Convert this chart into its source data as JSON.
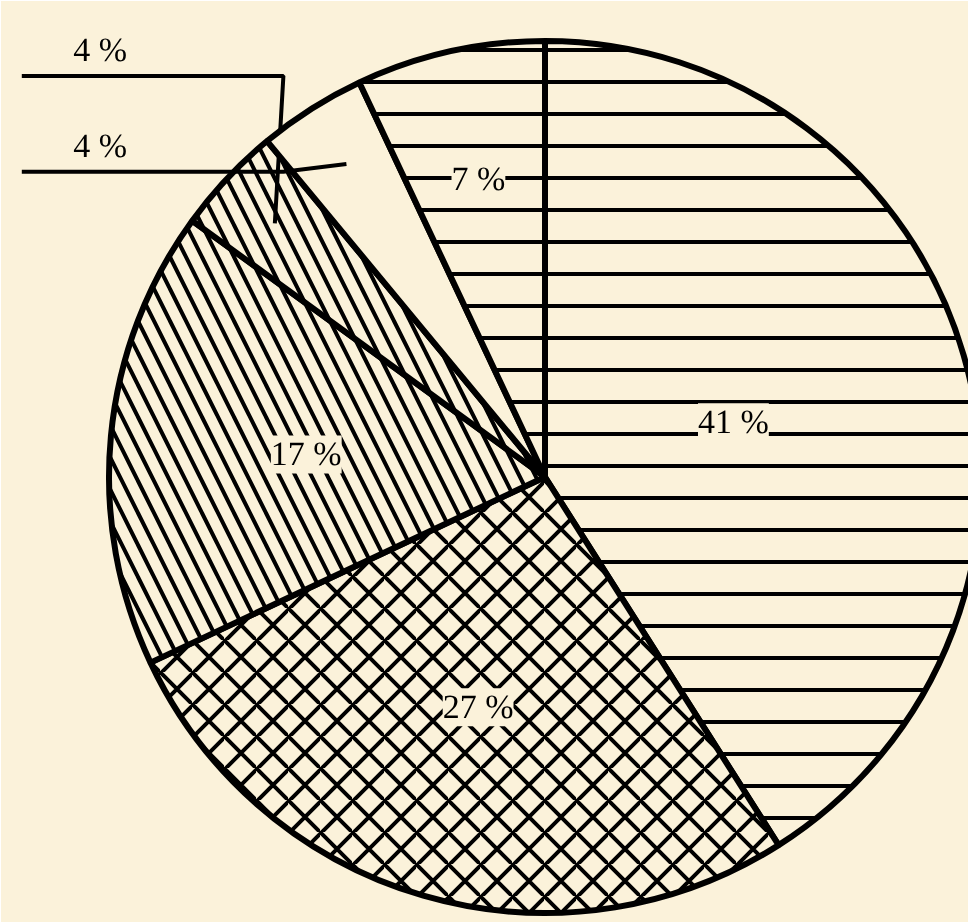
{
  "chart_data": {
    "type": "pie",
    "categories": [
      null,
      null,
      null,
      null,
      null,
      null
    ],
    "values": [
      41,
      27,
      17,
      4,
      4,
      7
    ],
    "colors": [
      "#fbf2da",
      "#fbf2da",
      "#fbf2da",
      "#fbf2da",
      "#fbf2da",
      "#fbf2da"
    ],
    "value_labels": [
      "41 %",
      "27 %",
      "17 %",
      "4 %",
      "4 %",
      "7 %"
    ]
  }
}
